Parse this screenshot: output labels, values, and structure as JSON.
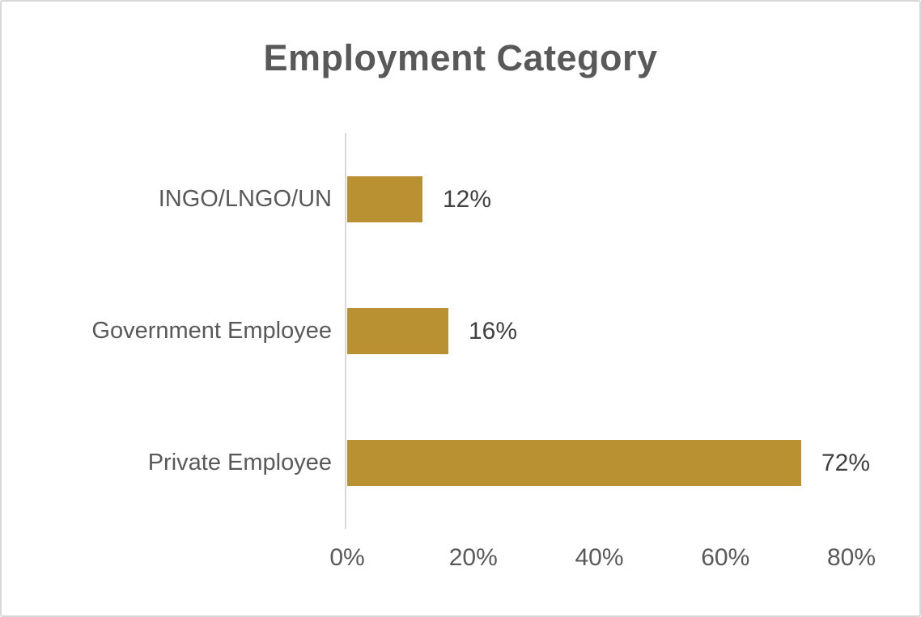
{
  "chart_data": {
    "type": "bar",
    "orientation": "horizontal",
    "title": "Employment Category",
    "categories": [
      "INGO/LNGO/UN",
      "Government Employee",
      "Private Employee"
    ],
    "values": [
      12,
      16,
      72
    ],
    "value_labels": [
      "12%",
      "16%",
      "72%"
    ],
    "x_ticks": [
      {
        "value": 0,
        "label": "0%"
      },
      {
        "value": 20,
        "label": "20%"
      },
      {
        "value": 40,
        "label": "40%"
      },
      {
        "value": 60,
        "label": "60%"
      },
      {
        "value": 80,
        "label": "80%"
      }
    ],
    "xlim": [
      0,
      80
    ],
    "xlabel": "",
    "ylabel": "",
    "grid": false,
    "legend": false,
    "colors": {
      "bar_fill": "#ba9132",
      "title_text": "#595959",
      "category_text": "#595959",
      "value_text": "#404040",
      "axis_line": "#d9d9d9",
      "frame_border": "#d8d8d8"
    }
  }
}
